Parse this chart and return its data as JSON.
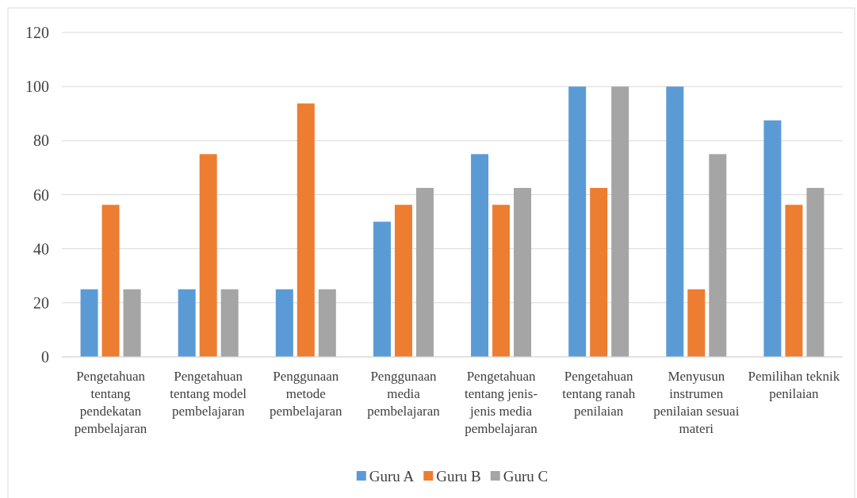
{
  "chart_data": {
    "type": "bar",
    "categories": [
      "Pengetahuan tentang pendekatan pembelajaran",
      "Pengetahuan tentang model pembelajaran",
      "Penggunaan metode pembelajaran",
      "Penggunaan media pembelajaran",
      "Pengetahuan tentang jenis-jenis media pembelajaran",
      "Pengetahuan tentang ranah penilaian",
      "Menyusun instrumen penilaian sesuai materi",
      "Pemilihan teknik penilaian"
    ],
    "series": [
      {
        "name": "Guru A",
        "color": "#5b9bd5",
        "values": [
          25,
          25,
          25,
          50,
          75,
          100,
          100,
          87.5
        ]
      },
      {
        "name": "Guru B",
        "color": "#ed7d31",
        "values": [
          56.25,
          75,
          93.75,
          56.25,
          56.25,
          62.5,
          25,
          56.25
        ]
      },
      {
        "name": "Guru C",
        "color": "#a5a5a5",
        "values": [
          25,
          25,
          25,
          62.5,
          62.5,
          100,
          75,
          62.5
        ]
      }
    ],
    "ylim": [
      0,
      120
    ],
    "yticks": [
      0,
      20,
      40,
      60,
      80,
      100,
      120
    ],
    "grid": "y",
    "legend": "bottom"
  }
}
